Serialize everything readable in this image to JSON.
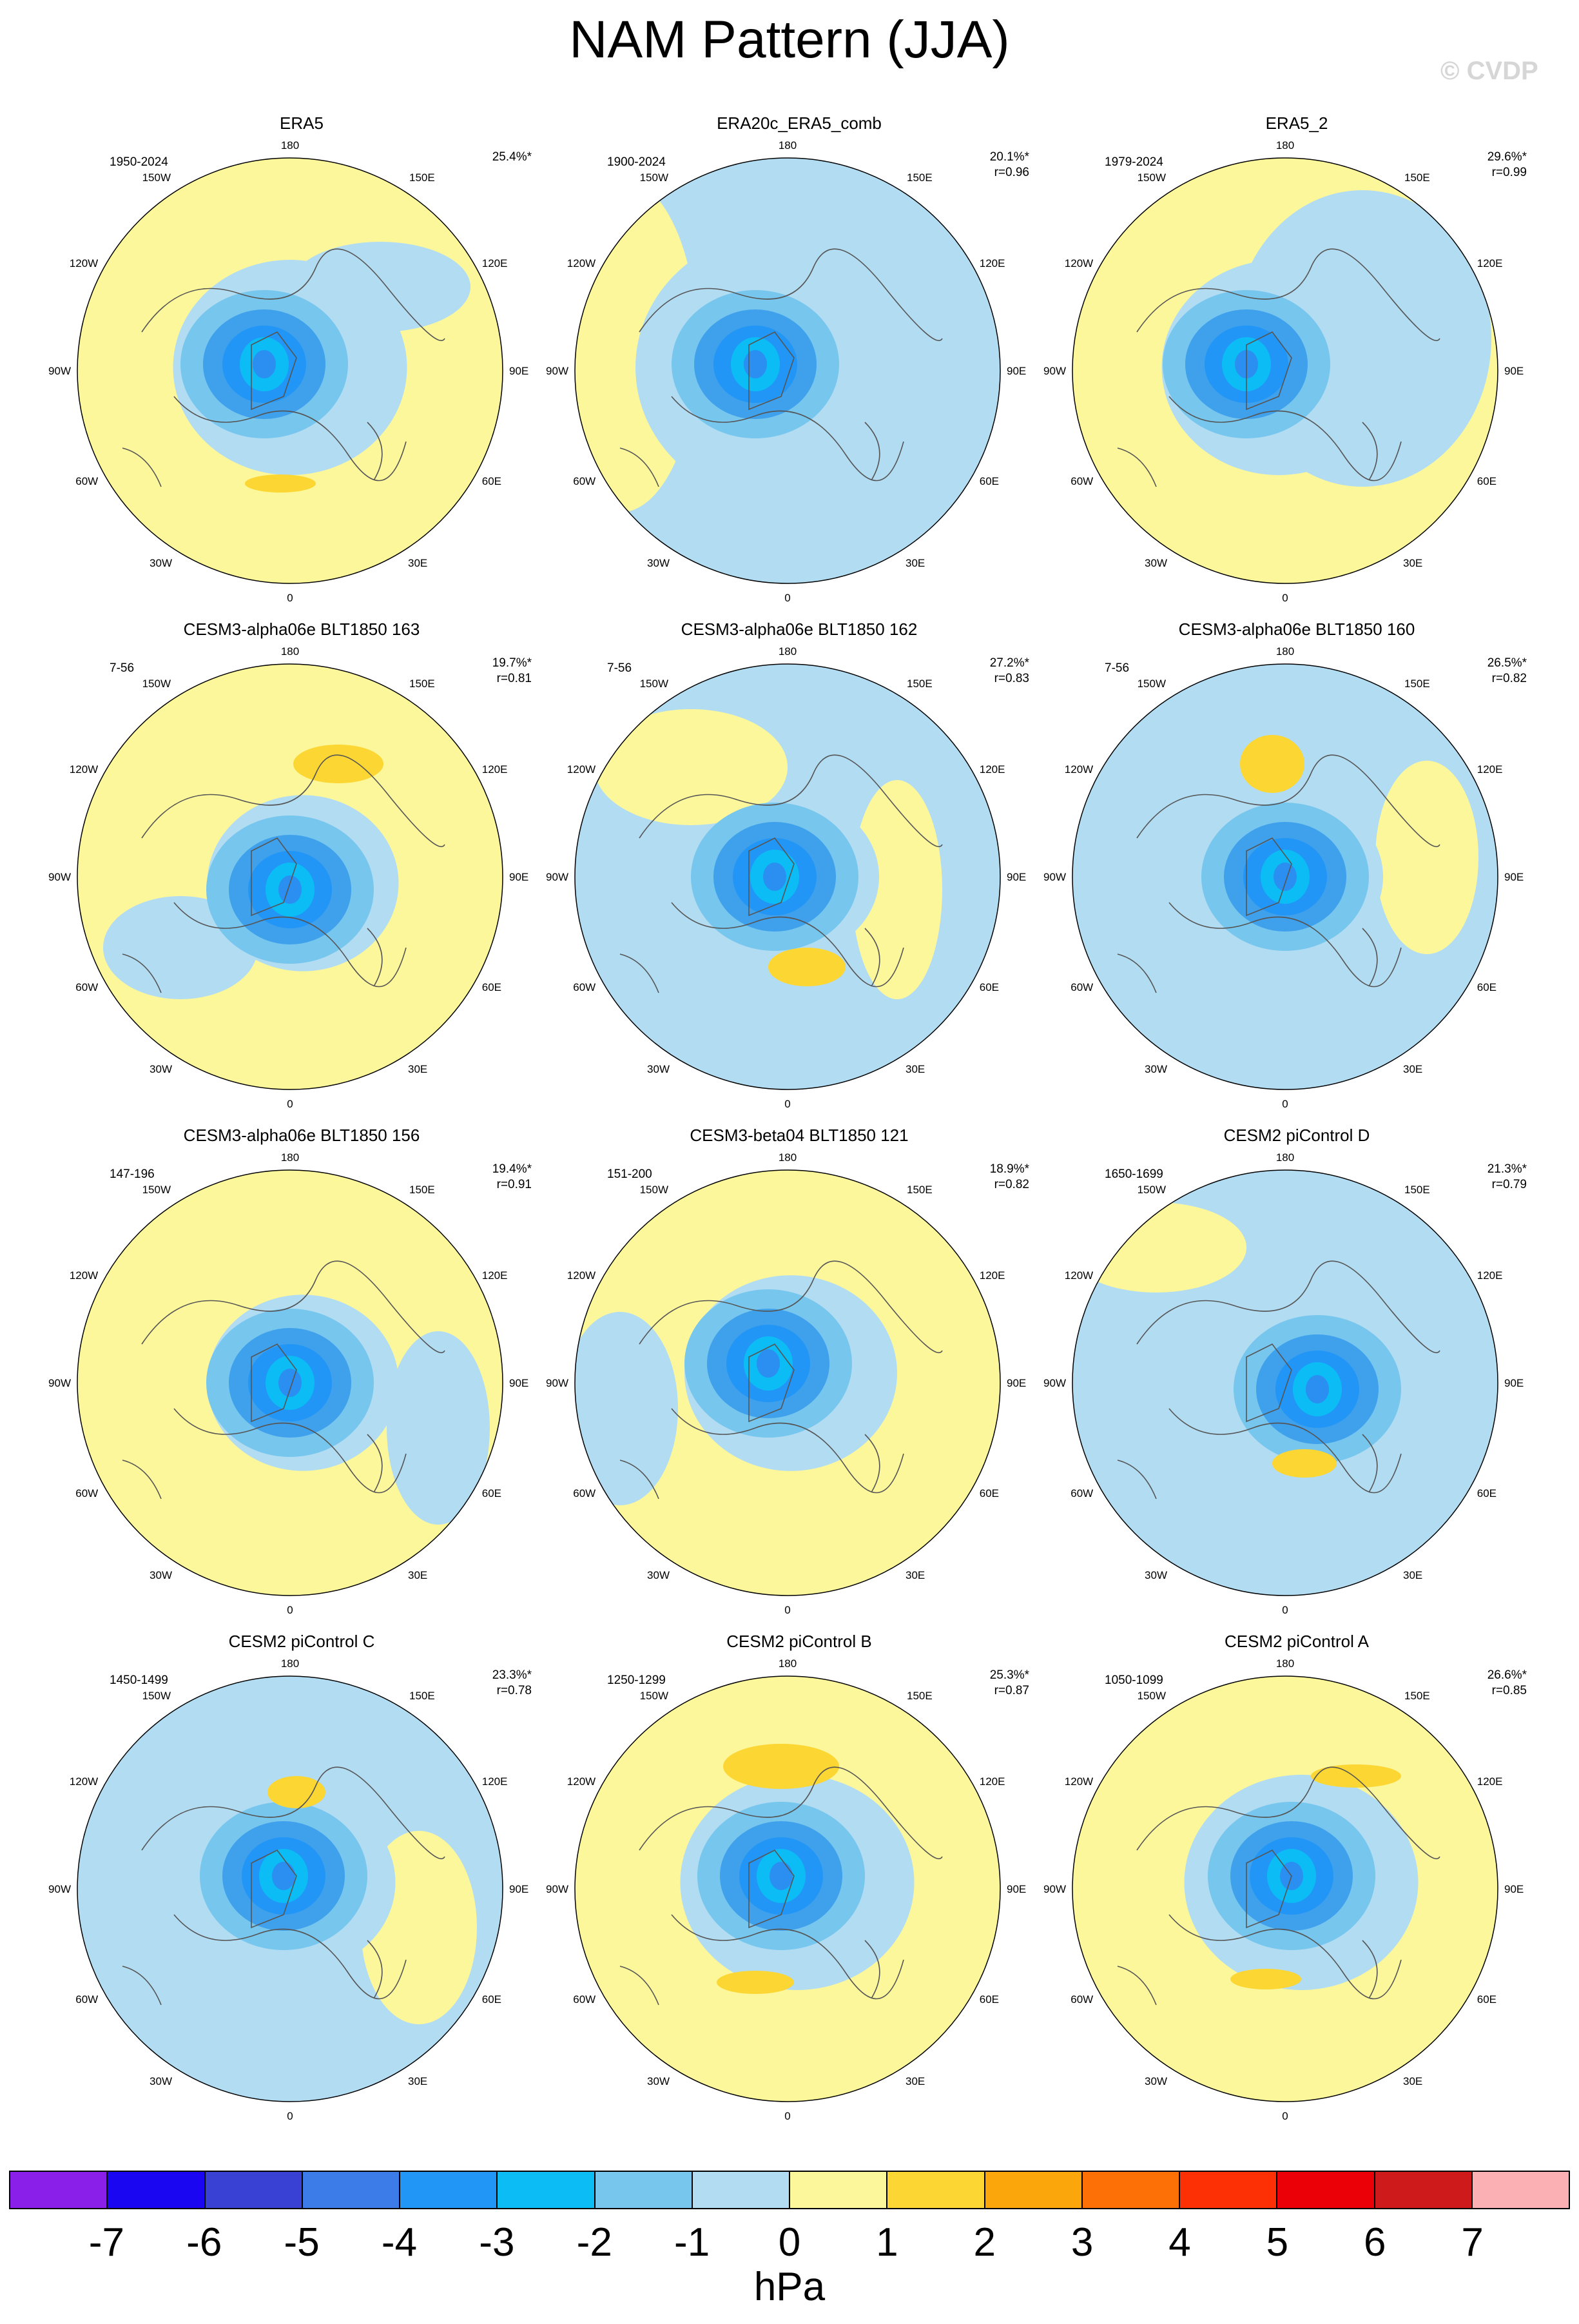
{
  "title": "NAM Pattern (JJA)",
  "watermark": "© CVDP",
  "longitude_labels": {
    "top": "180",
    "bottom": "0",
    "left": "90W",
    "right": "90E",
    "upper_left_1": "150W",
    "upper_left_2": "120W",
    "upper_right_1": "150E",
    "upper_right_2": "120E",
    "lower_left_1": "60W",
    "lower_left_2": "30W",
    "lower_right_1": "60E",
    "lower_right_2": "30E"
  },
  "colors": {
    "palette": [
      "#8a1fea",
      "#1a06f0",
      "#3841d4",
      "#3b7ce8",
      "#2196f6",
      "#0bbcf5",
      "#77c6ee",
      "#b2dcf2",
      "#fdf79c",
      "#fcd632",
      "#fba60b",
      "#fc7006",
      "#fd2f04",
      "#ec0008",
      "#cf1a1b",
      "#fbb0b3"
    ]
  },
  "colorbar": {
    "ticks": [
      "-7",
      "-6",
      "-5",
      "-4",
      "-3",
      "-2",
      "-1",
      "0",
      "1",
      "2",
      "3",
      "4",
      "5",
      "6",
      "7"
    ],
    "unit": "hPa"
  },
  "panels": [
    {
      "title": "ERA5",
      "years": "1950-2024",
      "percent": "25.4%*",
      "corr": ""
    },
    {
      "title": "ERA20c_ERA5_comb",
      "years": "1900-2024",
      "percent": "20.1%*",
      "corr": "r=0.96"
    },
    {
      "title": "ERA5_2",
      "years": "1979-2024",
      "percent": "29.6%*",
      "corr": "r=0.99"
    },
    {
      "title": "CESM3-alpha06e BLT1850 163",
      "years": "7-56",
      "percent": "19.7%*",
      "corr": "r=0.81"
    },
    {
      "title": "CESM3-alpha06e BLT1850 162",
      "years": "7-56",
      "percent": "27.2%*",
      "corr": "r=0.83"
    },
    {
      "title": "CESM3-alpha06e BLT1850 160",
      "years": "7-56",
      "percent": "26.5%*",
      "corr": "r=0.82"
    },
    {
      "title": "CESM3-alpha06e BLT1850 156",
      "years": "147-196",
      "percent": "19.4%*",
      "corr": "r=0.91"
    },
    {
      "title": "CESM3-beta04 BLT1850 121",
      "years": "151-200",
      "percent": "18.9%*",
      "corr": "r=0.82"
    },
    {
      "title": "CESM2 piControl D",
      "years": "1650-1699",
      "percent": "21.3%*",
      "corr": "r=0.79"
    },
    {
      "title": "CESM2 piControl C",
      "years": "1450-1499",
      "percent": "23.3%*",
      "corr": "r=0.78"
    },
    {
      "title": "CESM2 piControl B",
      "years": "1250-1299",
      "percent": "25.3%*",
      "corr": "r=0.87"
    },
    {
      "title": "CESM2 piControl A",
      "years": "1050-1099",
      "percent": "26.6%*",
      "corr": "r=0.85"
    }
  ]
}
